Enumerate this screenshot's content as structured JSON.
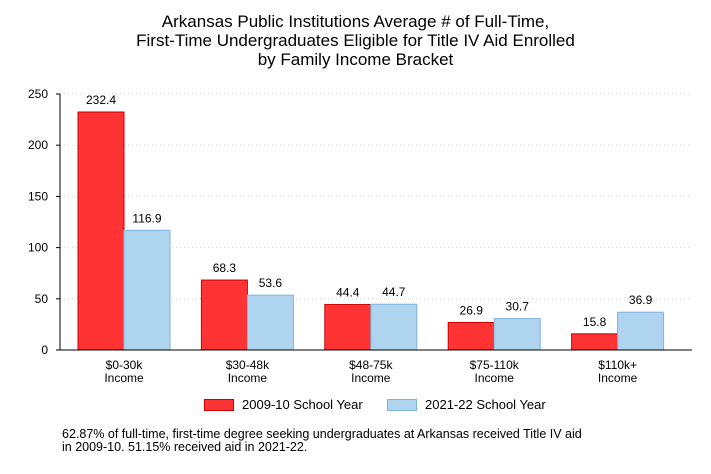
{
  "chart_data": {
    "type": "bar",
    "title_lines": [
      "Arkansas Public Institutions Average # of Full-Time,",
      "First-Time Undergraduates Eligible for Title IV Aid Enrolled",
      "by Family Income Bracket"
    ],
    "categories": [
      [
        "$0-30k",
        "Income"
      ],
      [
        "$30-48k",
        "Income"
      ],
      [
        "$48-75k",
        "Income"
      ],
      [
        "$75-110k",
        "Income"
      ],
      [
        "$110k+",
        "Income"
      ]
    ],
    "series": [
      {
        "name": "2009-10 School Year",
        "values": [
          232.4,
          68.3,
          44.4,
          26.9,
          15.8
        ],
        "color": "#ff3333",
        "stroke": "#cc0000"
      },
      {
        "name": "2021-22 School Year",
        "values": [
          116.9,
          53.6,
          44.7,
          30.7,
          36.9
        ],
        "color": "#aed4f0",
        "stroke": "#7fb5de"
      }
    ],
    "value_labels": [
      [
        "232.4",
        "68.3",
        "44.4",
        "26.9",
        "15.8"
      ],
      [
        "116.9",
        "53.6",
        "44.7",
        "30.7",
        "36.9"
      ]
    ],
    "ylim": [
      0,
      250
    ],
    "yticks": [
      0,
      50,
      100,
      150,
      200,
      250
    ],
    "grid": true,
    "legend_position": "bottom-center"
  },
  "footnote_lines": [
    "62.87% of full-time, first-time degree seeking undergraduates at Arkansas received Title IV aid",
    "in 2009-10. 51.15% received aid in 2021-22."
  ]
}
